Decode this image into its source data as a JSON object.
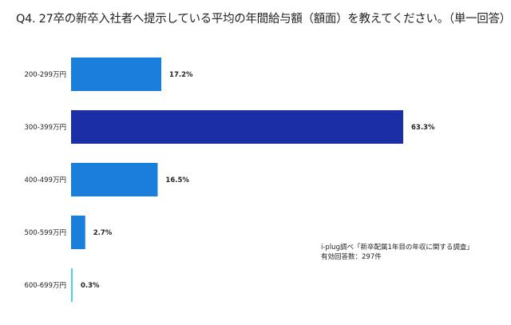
{
  "chart_data": {
    "type": "bar",
    "orientation": "horizontal",
    "title": "Q4. 27卒の新卒入社者へ提示している平均の年間給与額（額面）を教えてください。（単一回答）",
    "categories": [
      "200-299万円",
      "300-399万円",
      "400-499万円",
      "500-599万円",
      "600-699万円"
    ],
    "values": [
      17.2,
      63.3,
      16.5,
      2.7,
      0.3
    ],
    "labels": [
      "17.2%",
      "63.3%",
      "16.5%",
      "2.7%",
      "0.3%"
    ],
    "colors": [
      "#1a7fdc",
      "#1b2ea5",
      "#1a7fdc",
      "#1a7fdc",
      "#4fd0e3"
    ],
    "xlim": [
      0,
      63.3
    ],
    "grid": false
  },
  "note": {
    "source": "i-plug調べ「新卒配属1年目の年収に関する調査」",
    "count": "有効回答数：297件"
  }
}
